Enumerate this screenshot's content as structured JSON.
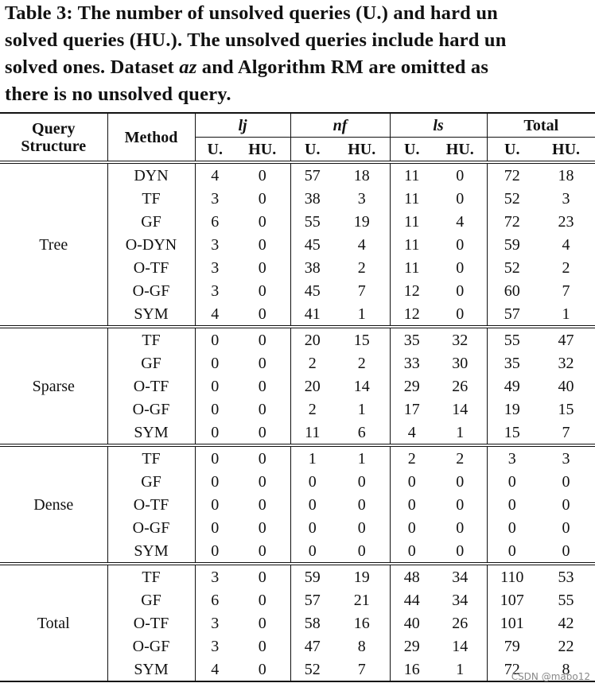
{
  "caption": {
    "lines": [
      [
        "Table 3: The number of unsolved queries (U.) and hard un"
      ],
      [
        "solved queries (HU.). The unsolved queries include hard un"
      ],
      [
        "solved ones. Dataset ",
        "az",
        " and Algorithm RM are omitted as"
      ],
      [
        "there is no unsolved query."
      ]
    ]
  },
  "table": {
    "header": {
      "structure": "Query Structure",
      "method": "Method",
      "datasets": [
        {
          "name": "lj",
          "sub": [
            "U.",
            "HU."
          ]
        },
        {
          "name": "nf",
          "sub": [
            "U.",
            "HU."
          ]
        },
        {
          "name": "ls",
          "sub": [
            "U.",
            "HU."
          ]
        },
        {
          "name": "Total",
          "sub": [
            "U.",
            "HU."
          ]
        }
      ]
    },
    "groups": [
      {
        "name": "Tree",
        "rows": [
          {
            "method": "DYN",
            "values": [
              4,
              0,
              57,
              18,
              11,
              0,
              72,
              18
            ]
          },
          {
            "method": "TF",
            "values": [
              3,
              0,
              38,
              3,
              11,
              0,
              52,
              3
            ]
          },
          {
            "method": "GF",
            "values": [
              6,
              0,
              55,
              19,
              11,
              4,
              72,
              23
            ]
          },
          {
            "method": "O-DYN",
            "values": [
              3,
              0,
              45,
              4,
              11,
              0,
              59,
              4
            ]
          },
          {
            "method": "O-TF",
            "values": [
              3,
              0,
              38,
              2,
              11,
              0,
              52,
              2
            ]
          },
          {
            "method": "O-GF",
            "values": [
              3,
              0,
              45,
              7,
              12,
              0,
              60,
              7
            ]
          },
          {
            "method": "SYM",
            "values": [
              4,
              0,
              41,
              1,
              12,
              0,
              57,
              1
            ]
          }
        ]
      },
      {
        "name": "Sparse",
        "rows": [
          {
            "method": "TF",
            "values": [
              0,
              0,
              20,
              15,
              35,
              32,
              55,
              47
            ]
          },
          {
            "method": "GF",
            "values": [
              0,
              0,
              2,
              2,
              33,
              30,
              35,
              32
            ]
          },
          {
            "method": "O-TF",
            "values": [
              0,
              0,
              20,
              14,
              29,
              26,
              49,
              40
            ]
          },
          {
            "method": "O-GF",
            "values": [
              0,
              0,
              2,
              1,
              17,
              14,
              19,
              15
            ]
          },
          {
            "method": "SYM",
            "values": [
              0,
              0,
              11,
              6,
              4,
              1,
              15,
              7
            ]
          }
        ]
      },
      {
        "name": "Dense",
        "rows": [
          {
            "method": "TF",
            "values": [
              0,
              0,
              1,
              1,
              2,
              2,
              3,
              3
            ]
          },
          {
            "method": "GF",
            "values": [
              0,
              0,
              0,
              0,
              0,
              0,
              0,
              0
            ]
          },
          {
            "method": "O-TF",
            "values": [
              0,
              0,
              0,
              0,
              0,
              0,
              0,
              0
            ]
          },
          {
            "method": "O-GF",
            "values": [
              0,
              0,
              0,
              0,
              0,
              0,
              0,
              0
            ]
          },
          {
            "method": "SYM",
            "values": [
              0,
              0,
              0,
              0,
              0,
              0,
              0,
              0
            ]
          }
        ]
      },
      {
        "name": "Total",
        "rows": [
          {
            "method": "TF",
            "values": [
              3,
              0,
              59,
              19,
              48,
              34,
              110,
              53
            ]
          },
          {
            "method": "GF",
            "values": [
              6,
              0,
              57,
              21,
              44,
              34,
              107,
              55
            ]
          },
          {
            "method": "O-TF",
            "values": [
              3,
              0,
              58,
              16,
              40,
              26,
              101,
              42
            ]
          },
          {
            "method": "O-GF",
            "values": [
              3,
              0,
              47,
              8,
              29,
              14,
              79,
              22
            ]
          },
          {
            "method": "SYM",
            "values": [
              4,
              0,
              52,
              7,
              16,
              1,
              72,
              8
            ]
          }
        ]
      }
    ]
  },
  "watermark": "CSDN @mabo12"
}
